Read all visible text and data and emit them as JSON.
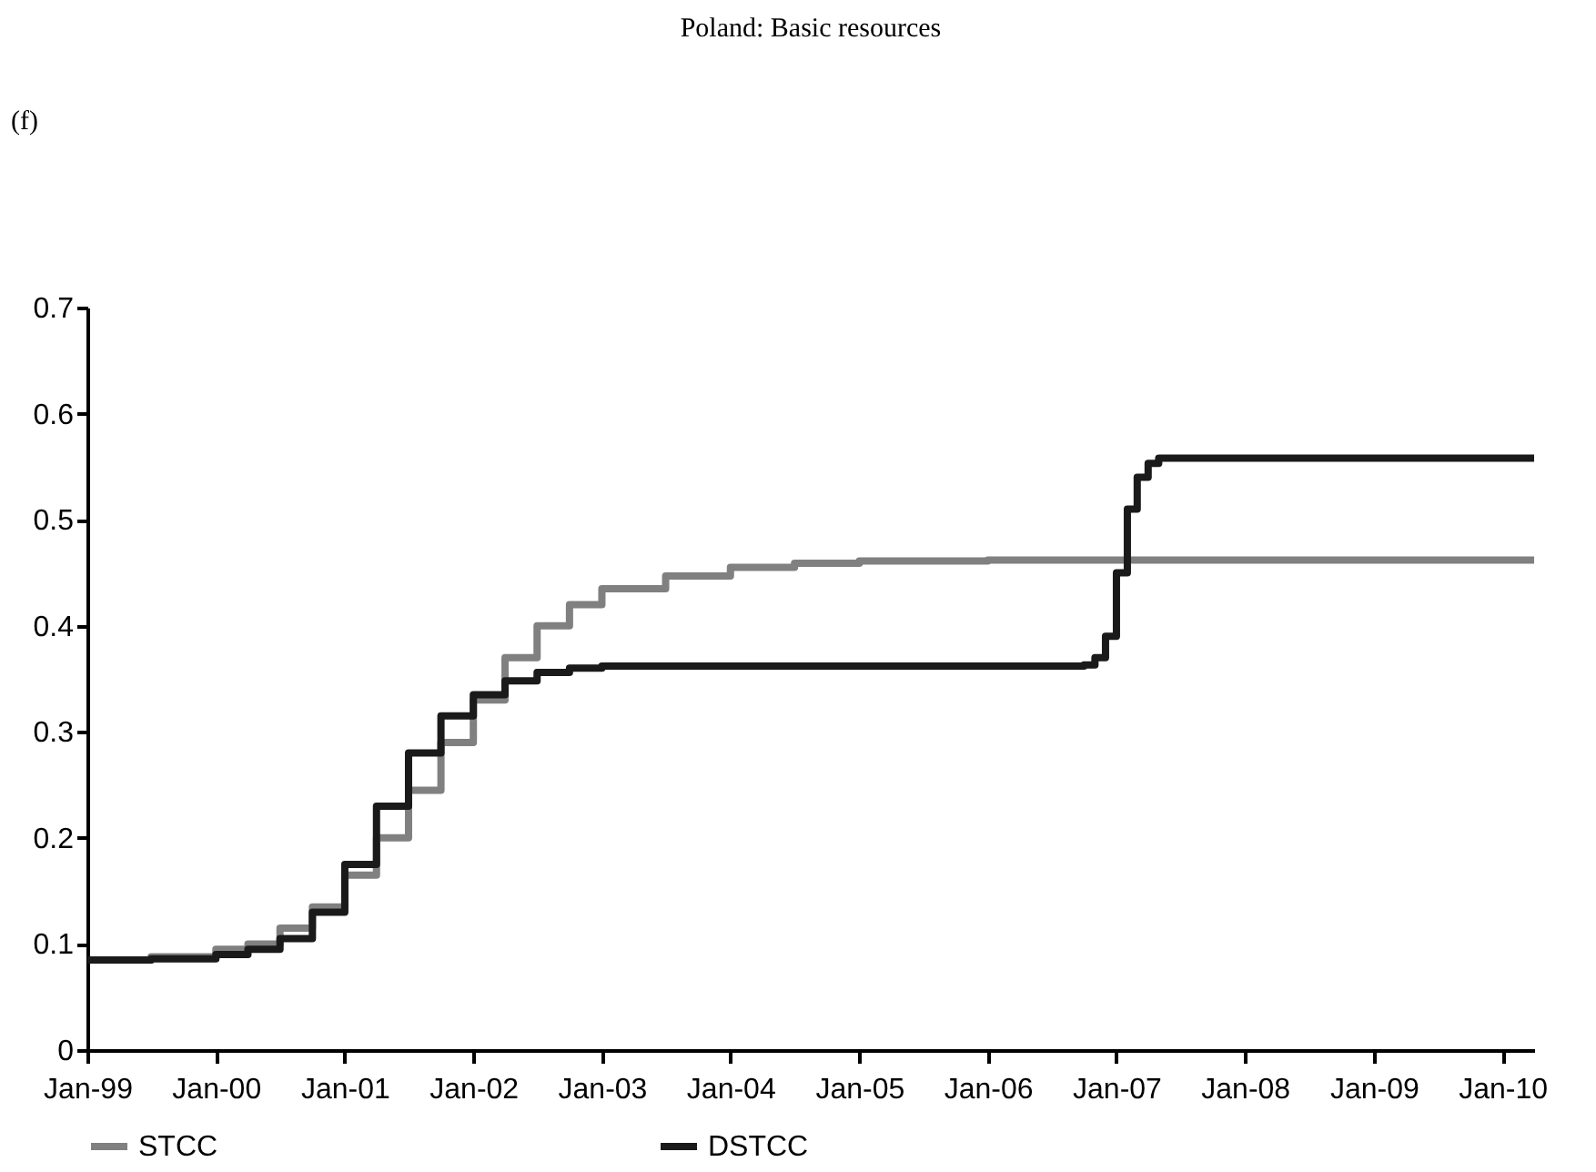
{
  "chart_data": {
    "type": "step",
    "title": "Poland: Basic resources",
    "annotations": [
      "(f)"
    ],
    "xlim": [
      "1999-01-01",
      "2010-04-01"
    ],
    "xticks": [
      {
        "value": "1999-01-01",
        "label": "Jan-99"
      },
      {
        "value": "2000-01-01",
        "label": "Jan-00"
      },
      {
        "value": "2001-01-01",
        "label": "Jan-01"
      },
      {
        "value": "2002-01-01",
        "label": "Jan-02"
      },
      {
        "value": "2003-01-01",
        "label": "Jan-03"
      },
      {
        "value": "2004-01-01",
        "label": "Jan-04"
      },
      {
        "value": "2005-01-01",
        "label": "Jan-05"
      },
      {
        "value": "2006-01-01",
        "label": "Jan-06"
      },
      {
        "value": "2007-01-01",
        "label": "Jan-07"
      },
      {
        "value": "2008-01-01",
        "label": "Jan-08"
      },
      {
        "value": "2009-01-01",
        "label": "Jan-09"
      },
      {
        "value": "2010-01-01",
        "label": "Jan-10"
      }
    ],
    "ylim": [
      0,
      0.7
    ],
    "yticks": [
      0,
      0.1,
      0.2,
      0.3,
      0.4,
      0.5,
      0.6,
      0.7
    ],
    "grid": false,
    "legend": "bottom",
    "marker": "none",
    "line_style": "solid",
    "series": [
      {
        "name": "STCC",
        "color": "#808080",
        "x": [
          "1999-01",
          "1999-07",
          "2000-01",
          "2000-04",
          "2000-07",
          "2000-10",
          "2001-01",
          "2001-04",
          "2001-07",
          "2001-10",
          "2002-01",
          "2002-04",
          "2002-07",
          "2002-10",
          "2003-01",
          "2003-07",
          "2004-01",
          "2004-07",
          "2005-01",
          "2006-01",
          "2010-04"
        ],
        "values": [
          0.085,
          0.088,
          0.095,
          0.1,
          0.115,
          0.135,
          0.165,
          0.2,
          0.245,
          0.29,
          0.33,
          0.37,
          0.4,
          0.42,
          0.435,
          0.447,
          0.455,
          0.459,
          0.461,
          0.462,
          0.462
        ]
      },
      {
        "name": "DSTCC",
        "color": "#1a1a1a",
        "x": [
          "1999-01",
          "1999-07",
          "2000-01",
          "2000-04",
          "2000-07",
          "2000-10",
          "2001-01",
          "2001-04",
          "2001-07",
          "2001-10",
          "2002-01",
          "2002-04",
          "2002-07",
          "2002-10",
          "2003-01",
          "2006-10",
          "2006-11",
          "2006-12",
          "2007-01",
          "2007-02",
          "2007-03",
          "2007-04",
          "2007-05",
          "2010-04"
        ],
        "values": [
          0.085,
          0.086,
          0.09,
          0.095,
          0.105,
          0.13,
          0.175,
          0.23,
          0.28,
          0.315,
          0.335,
          0.348,
          0.356,
          0.36,
          0.362,
          0.363,
          0.37,
          0.39,
          0.45,
          0.51,
          0.54,
          0.553,
          0.558,
          0.558
        ]
      }
    ]
  }
}
